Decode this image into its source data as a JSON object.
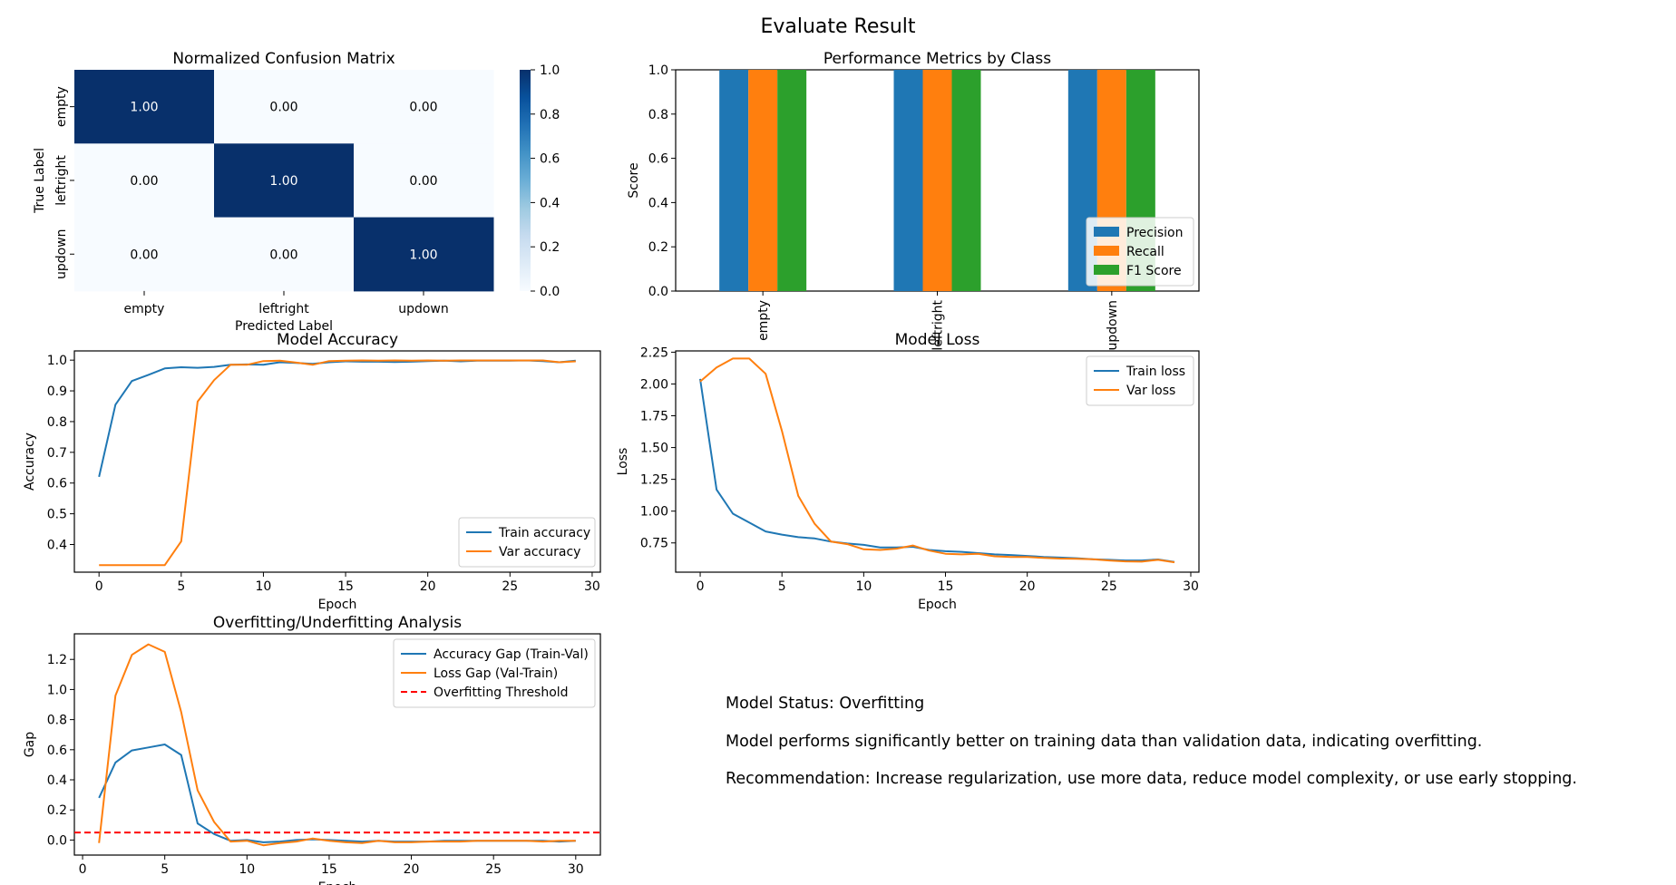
{
  "figure": {
    "suptitle": "Evaluate Result"
  },
  "status": {
    "line1": "Model Status: Overfitting",
    "line2": "Model performs significantly better on training data than validation data, indicating overfitting.",
    "line3": "Recommendation: Increase regularization, use more data, reduce model complexity, or use early stopping."
  },
  "chart_data": [
    {
      "type": "heatmap",
      "title": "Normalized Confusion Matrix",
      "xlabel": "Predicted Label",
      "ylabel": "True Label",
      "x_categories": [
        "empty",
        "leftright",
        "updown"
      ],
      "y_categories": [
        "empty",
        "leftright",
        "updown"
      ],
      "values": [
        [
          1.0,
          0.0,
          0.0
        ],
        [
          0.0,
          1.0,
          0.0
        ],
        [
          0.0,
          0.0,
          1.0
        ]
      ],
      "value_labels": [
        [
          "1.00",
          "0.00",
          "0.00"
        ],
        [
          "0.00",
          "1.00",
          "0.00"
        ],
        [
          "0.00",
          "0.00",
          "1.00"
        ]
      ],
      "colormap": "Blues",
      "colorbar": {
        "range": [
          0.0,
          1.0
        ],
        "ticks": [
          "0.0",
          "0.2",
          "0.4",
          "0.6",
          "0.8",
          "1.0"
        ]
      }
    },
    {
      "type": "bar",
      "title": "Performance Metrics by Class",
      "xlabel": "",
      "ylabel": "Score",
      "categories": [
        "empty",
        "leftright",
        "updown"
      ],
      "series": [
        {
          "name": "Precision",
          "values": [
            1.0,
            1.0,
            1.0
          ],
          "color": "#1f77b4"
        },
        {
          "name": "Recall",
          "values": [
            1.0,
            1.0,
            1.0
          ],
          "color": "#ff7f0e"
        },
        {
          "name": "F1 Score",
          "values": [
            1.0,
            1.0,
            1.0
          ],
          "color": "#2ca02c"
        }
      ],
      "ylim": [
        0.0,
        1.0
      ],
      "yticks": [
        "0.0",
        "0.2",
        "0.4",
        "0.6",
        "0.8",
        "1.0"
      ],
      "legend": "lower-right"
    },
    {
      "type": "line",
      "title": "Model Accuracy",
      "xlabel": "Epoch",
      "ylabel": "Accuracy",
      "xlim": [
        -1.5,
        30.5
      ],
      "ylim": [
        0.31,
        1.03
      ],
      "xticks": [
        "0",
        "5",
        "10",
        "15",
        "20",
        "25",
        "30"
      ],
      "yticks": [
        "0.4",
        "0.5",
        "0.6",
        "0.7",
        "0.8",
        "0.9",
        "1.0"
      ],
      "x": [
        0,
        1,
        2,
        3,
        4,
        5,
        6,
        7,
        8,
        9,
        10,
        11,
        12,
        13,
        14,
        15,
        16,
        17,
        18,
        19,
        20,
        21,
        22,
        23,
        24,
        25,
        26,
        27,
        28,
        29
      ],
      "series": [
        {
          "name": "Train accuracy",
          "color": "#1f77b4",
          "values": [
            0.62,
            0.855,
            0.932,
            0.952,
            0.973,
            0.977,
            0.975,
            0.978,
            0.985,
            0.986,
            0.985,
            0.993,
            0.991,
            0.988,
            0.993,
            0.996,
            0.995,
            0.995,
            0.994,
            0.995,
            0.997,
            0.998,
            0.996,
            0.998,
            0.998,
            0.998,
            0.999,
            0.997,
            0.993,
            0.998
          ]
        },
        {
          "name": "Var accuracy",
          "color": "#ff7f0e",
          "values": [
            0.333,
            0.333,
            0.333,
            0.333,
            0.333,
            0.41,
            0.865,
            0.935,
            0.985,
            0.985,
            0.997,
            0.998,
            0.992,
            0.985,
            0.997,
            0.998,
            0.999,
            0.998,
            0.999,
            0.998,
            0.999,
            0.998,
            0.999,
            0.999,
            0.999,
            0.999,
            0.999,
            0.999,
            0.993,
            0.996
          ]
        }
      ],
      "legend": "lower-right"
    },
    {
      "type": "line",
      "title": "Model Loss",
      "xlabel": "Epoch",
      "ylabel": "Loss",
      "xlim": [
        -1.5,
        30.5
      ],
      "ylim": [
        0.52,
        2.26
      ],
      "xticks": [
        "0",
        "5",
        "10",
        "15",
        "20",
        "25",
        "30"
      ],
      "yticks": [
        "0.75",
        "1.00",
        "1.25",
        "1.50",
        "1.75",
        "2.00",
        "2.25"
      ],
      "x": [
        0,
        1,
        2,
        3,
        4,
        5,
        6,
        7,
        8,
        9,
        10,
        11,
        12,
        13,
        14,
        15,
        16,
        17,
        18,
        19,
        20,
        21,
        22,
        23,
        24,
        25,
        26,
        27,
        28,
        29
      ],
      "series": [
        {
          "name": "Train loss",
          "color": "#1f77b4",
          "values": [
            2.04,
            1.17,
            0.98,
            0.91,
            0.84,
            0.815,
            0.795,
            0.785,
            0.76,
            0.745,
            0.735,
            0.715,
            0.715,
            0.72,
            0.695,
            0.685,
            0.68,
            0.67,
            0.66,
            0.655,
            0.648,
            0.64,
            0.635,
            0.63,
            0.622,
            0.617,
            0.612,
            0.612,
            0.62,
            0.6
          ]
        },
        {
          "name": "Var loss",
          "color": "#ff7f0e",
          "values": [
            2.02,
            2.13,
            2.2,
            2.2,
            2.08,
            1.63,
            1.12,
            0.9,
            0.76,
            0.74,
            0.7,
            0.695,
            0.705,
            0.73,
            0.69,
            0.665,
            0.66,
            0.665,
            0.645,
            0.64,
            0.64,
            0.632,
            0.627,
            0.625,
            0.622,
            0.612,
            0.605,
            0.603,
            0.617,
            0.598
          ]
        }
      ],
      "legend": "top-right"
    },
    {
      "type": "line",
      "title": "Overfitting/Underfitting Analysis",
      "xlabel": "Epoch",
      "ylabel": "Gap",
      "xlim": [
        -0.5,
        31.5
      ],
      "ylim": [
        -0.1,
        1.37
      ],
      "xticks": [
        "0",
        "5",
        "10",
        "15",
        "20",
        "25",
        "30"
      ],
      "yticks": [
        "0.0",
        "0.2",
        "0.4",
        "0.6",
        "0.8",
        "1.0",
        "1.2"
      ],
      "x": [
        1,
        2,
        3,
        4,
        5,
        6,
        7,
        8,
        9,
        10,
        11,
        12,
        13,
        14,
        15,
        16,
        17,
        18,
        19,
        20,
        21,
        22,
        23,
        24,
        25,
        26,
        27,
        28,
        29,
        30
      ],
      "series": [
        {
          "name": "Accuracy Gap (Train-Val)",
          "color": "#1f77b4",
          "values": [
            0.28,
            0.515,
            0.595,
            0.615,
            0.635,
            0.565,
            0.11,
            0.04,
            -0.005,
            0.0,
            -0.015,
            -0.01,
            0.0,
            0.005,
            0.0,
            -0.005,
            -0.01,
            -0.005,
            -0.01,
            -0.01,
            -0.01,
            -0.005,
            -0.005,
            -0.005,
            -0.005,
            -0.005,
            -0.005,
            -0.005,
            -0.01,
            -0.005
          ]
        },
        {
          "name": "Loss Gap (Val-Train)",
          "color": "#ff7f0e",
          "values": [
            -0.02,
            0.96,
            1.23,
            1.3,
            1.25,
            0.85,
            0.33,
            0.12,
            -0.01,
            -0.005,
            -0.035,
            -0.02,
            -0.01,
            0.01,
            -0.005,
            -0.015,
            -0.02,
            -0.005,
            -0.015,
            -0.015,
            -0.01,
            -0.01,
            -0.01,
            -0.005,
            -0.005,
            -0.005,
            -0.005,
            -0.01,
            -0.005,
            -0.005
          ]
        }
      ],
      "threshold": {
        "name": "Overfitting Threshold",
        "value": 0.05,
        "color": "#ff0000",
        "style": "dashed"
      },
      "legend": "top-right"
    }
  ]
}
